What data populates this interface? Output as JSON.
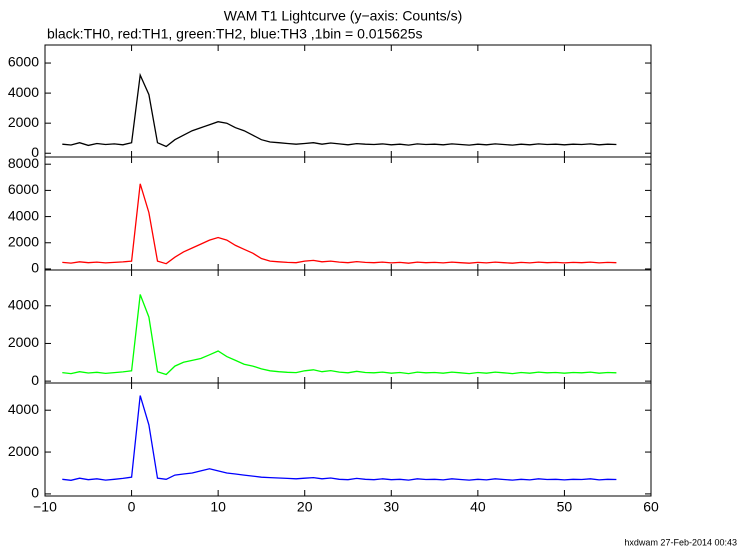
{
  "chart_data": {
    "type": "line",
    "title": "WAM T1 Lightcurve (y−axis: Counts/s)",
    "subtitle": "black:TH0, red:TH1, green:TH2, blue:TH3 ,1bin = 0.015625s",
    "footer": "hxdwam 27-Feb-2014 00:43",
    "xlim": [
      -10,
      60
    ],
    "xticks": [
      {
        "value": -10,
        "label": "−10"
      },
      0,
      10,
      20,
      30,
      40,
      50,
      60
    ],
    "x": [
      -8,
      -7,
      -6,
      -5,
      -4,
      -3,
      -2,
      -1,
      0,
      1,
      2,
      3,
      4,
      5,
      6,
      7,
      8,
      9,
      10,
      11,
      12,
      13,
      14,
      15,
      16,
      17,
      18,
      19,
      20,
      21,
      22,
      23,
      24,
      25,
      26,
      27,
      28,
      29,
      30,
      31,
      32,
      33,
      34,
      35,
      36,
      37,
      38,
      39,
      40,
      41,
      42,
      43,
      44,
      45,
      46,
      47,
      48,
      49,
      50,
      51,
      52,
      53,
      54,
      55,
      56
    ],
    "panels": [
      {
        "color": "#000000",
        "ylim": [
          -250,
          7200
        ],
        "yticks": [
          0,
          2000,
          4000,
          6000
        ],
        "values": [
          600,
          550,
          700,
          520,
          650,
          580,
          620,
          560,
          700,
          5200,
          3900,
          700,
          450,
          900,
          1200,
          1500,
          1700,
          1900,
          2100,
          2000,
          1700,
          1500,
          1200,
          900,
          750,
          700,
          650,
          600,
          650,
          700,
          600,
          680,
          620,
          560,
          640,
          600,
          580,
          620,
          560,
          600,
          540,
          620,
          580,
          600,
          560,
          620,
          580,
          540,
          600,
          560,
          620,
          580,
          540,
          600,
          560,
          620,
          580,
          600,
          560,
          600,
          580,
          620,
          560,
          600,
          580
        ]
      },
      {
        "color": "#ff0000",
        "ylim": [
          -80,
          8550
        ],
        "yticks": [
          0,
          2000,
          4000,
          6000,
          8000
        ],
        "values": [
          500,
          450,
          550,
          480,
          520,
          460,
          500,
          540,
          600,
          6500,
          4300,
          600,
          400,
          900,
          1300,
          1600,
          1900,
          2200,
          2400,
          2200,
          1800,
          1500,
          1200,
          800,
          600,
          550,
          500,
          480,
          600,
          650,
          550,
          600,
          520,
          480,
          560,
          500,
          480,
          520,
          460,
          500,
          440,
          520,
          480,
          500,
          460,
          520,
          480,
          440,
          500,
          460,
          520,
          480,
          440,
          500,
          460,
          520,
          480,
          500,
          460,
          500,
          480,
          520,
          460,
          500,
          480
        ]
      },
      {
        "color": "#00ff00",
        "ylim": [
          -100,
          5900
        ],
        "yticks": [
          0,
          2000,
          4000
        ],
        "values": [
          450,
          400,
          500,
          430,
          470,
          410,
          450,
          490,
          550,
          4600,
          3400,
          500,
          350,
          800,
          1000,
          1100,
          1200,
          1400,
          1600,
          1300,
          1100,
          900,
          800,
          650,
          550,
          500,
          470,
          450,
          550,
          600,
          500,
          560,
          480,
          440,
          520,
          460,
          440,
          480,
          420,
          460,
          400,
          480,
          440,
          460,
          420,
          480,
          440,
          400,
          460,
          420,
          480,
          440,
          400,
          460,
          420,
          480,
          440,
          460,
          420,
          460,
          440,
          480,
          420,
          460,
          440
        ]
      },
      {
        "color": "#0000ff",
        "ylim": [
          -100,
          5300
        ],
        "yticks": [
          0,
          2000,
          4000
        ],
        "values": [
          700,
          650,
          750,
          680,
          720,
          660,
          700,
          740,
          800,
          4700,
          3300,
          750,
          700,
          900,
          950,
          1000,
          1100,
          1200,
          1100,
          1000,
          950,
          900,
          850,
          800,
          780,
          760,
          740,
          720,
          750,
          780,
          720,
          760,
          700,
          680,
          740,
          700,
          680,
          720,
          680,
          700,
          660,
          720,
          690,
          700,
          670,
          720,
          690,
          660,
          700,
          670,
          720,
          690,
          660,
          700,
          670,
          720,
          690,
          700,
          670,
          700,
          690,
          720,
          670,
          700,
          690
        ]
      }
    ]
  }
}
